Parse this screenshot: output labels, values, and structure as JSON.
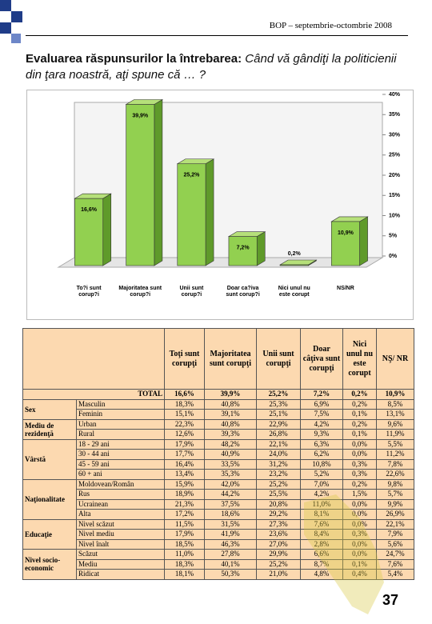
{
  "header": {
    "title": "BOP – septembrie-octombrie 2008"
  },
  "heading": {
    "lead": "Evaluarea răspunsurilor la întrebarea:",
    "question": "Când vă gândiţi la politicienii din ţara noastră, aţi spune că … ?"
  },
  "chart_data": {
    "type": "bar",
    "categories": [
      "To?i sunt corup?i",
      "Majoritatea sunt corup?i",
      "Unii sunt corup?i",
      "Doar ca?iva sunt corup?i",
      "Nici unul nu este corupt",
      "NS/NR"
    ],
    "values": [
      16.6,
      39.9,
      25.2,
      7.2,
      0.2,
      10.9
    ],
    "value_labels": [
      "16,6%",
      "39,9%",
      "25,2%",
      "7,2%",
      "0,2%",
      "10,9%"
    ],
    "color": "#92d050",
    "ylim": [
      0,
      40
    ],
    "yticks": [
      {
        "value": 0,
        "label": "0%"
      },
      {
        "value": 5,
        "label": "5%"
      },
      {
        "value": 10,
        "label": "10%"
      },
      {
        "value": 15,
        "label": "15%"
      },
      {
        "value": 20,
        "label": "20%"
      },
      {
        "value": 25,
        "label": "25%"
      },
      {
        "value": 30,
        "label": "30%"
      },
      {
        "value": 35,
        "label": "35%"
      },
      {
        "value": 40,
        "label": "40%"
      }
    ]
  },
  "table": {
    "columns": [
      "Toţi sunt corupţi",
      "Majoritatea sunt corupţi",
      "Unii sunt corupţi",
      "Doar câţiva sunt corupţi",
      "Nici unul nu este corupt",
      "NŞ/ NR"
    ],
    "total": {
      "label": "TOTAL",
      "values": [
        "16,6%",
        "39,9%",
        "25,2%",
        "7,2%",
        "0,2%",
        "10,9%"
      ]
    },
    "groups": [
      {
        "name": "Sex",
        "rows": [
          {
            "label": "Masculin",
            "values": [
              "18,3%",
              "40,8%",
              "25,3%",
              "6,9%",
              "0,2%",
              "8,5%"
            ]
          },
          {
            "label": "Feminin",
            "values": [
              "15,1%",
              "39,1%",
              "25,1%",
              "7,5%",
              "0,1%",
              "13,1%"
            ]
          }
        ]
      },
      {
        "name": "Mediu de rezidenţă",
        "rows": [
          {
            "label": "Urban",
            "values": [
              "22,3%",
              "40,8%",
              "22,9%",
              "4,2%",
              "0,2%",
              "9,6%"
            ]
          },
          {
            "label": "Rural",
            "values": [
              "12,6%",
              "39,3%",
              "26,8%",
              "9,3%",
              "0,1%",
              "11,9%"
            ]
          }
        ]
      },
      {
        "name": "Vârstă",
        "rows": [
          {
            "label": "18 - 29 ani",
            "values": [
              "17,9%",
              "48,2%",
              "22,1%",
              "6,3%",
              "0,0%",
              "5,5%"
            ]
          },
          {
            "label": "30 - 44 ani",
            "values": [
              "17,7%",
              "40,9%",
              "24,0%",
              "6,2%",
              "0,0%",
              "11,2%"
            ]
          },
          {
            "label": "45 - 59 ani",
            "values": [
              "16,4%",
              "33,5%",
              "31,2%",
              "10,8%",
              "0,3%",
              "7,8%"
            ]
          },
          {
            "label": "60 + ani",
            "values": [
              "13,4%",
              "35,3%",
              "23,2%",
              "5,2%",
              "0,3%",
              "22,6%"
            ]
          }
        ]
      },
      {
        "name": "Naţionalitate",
        "rows": [
          {
            "label": "Moldovean/Român",
            "values": [
              "15,9%",
              "42,0%",
              "25,2%",
              "7,0%",
              "0,2%",
              "9,8%"
            ]
          },
          {
            "label": "Rus",
            "values": [
              "18,9%",
              "44,2%",
              "25,5%",
              "4,2%",
              "1,5%",
              "5,7%"
            ]
          },
          {
            "label": "Ucrainean",
            "values": [
              "21,3%",
              "37,5%",
              "20,8%",
              "11,0%",
              "0,0%",
              "9,9%"
            ]
          },
          {
            "label": "Alta",
            "values": [
              "17,2%",
              "18,6%",
              "29,2%",
              "8,1%",
              "0,0%",
              "26,9%"
            ]
          }
        ]
      },
      {
        "name": "Educaţie",
        "rows": [
          {
            "label": "Nivel scăzut",
            "values": [
              "11,5%",
              "31,5%",
              "27,3%",
              "7,6%",
              "0,0%",
              "22,1%"
            ]
          },
          {
            "label": "Nivel mediu",
            "values": [
              "17,9%",
              "41,9%",
              "23,6%",
              "8,4%",
              "0,3%",
              "7,9%"
            ]
          },
          {
            "label": "Nivel înalt",
            "values": [
              "18,5%",
              "46,3%",
              "27,0%",
              "2,8%",
              "0,0%",
              "5,6%"
            ]
          }
        ]
      },
      {
        "name": "Nivel socio-economic",
        "rows": [
          {
            "label": "Scăzut",
            "values": [
              "11,0%",
              "27,8%",
              "29,9%",
              "6,6%",
              "0,0%",
              "24,7%"
            ]
          },
          {
            "label": "Mediu",
            "values": [
              "18,3%",
              "40,1%",
              "25,2%",
              "8,7%",
              "0,1%",
              "7,6%"
            ]
          },
          {
            "label": "Ridicat",
            "values": [
              "18,1%",
              "50,3%",
              "21,0%",
              "4,8%",
              "0,4%",
              "5,4%"
            ]
          }
        ]
      }
    ]
  },
  "footer": {
    "page": "37"
  }
}
